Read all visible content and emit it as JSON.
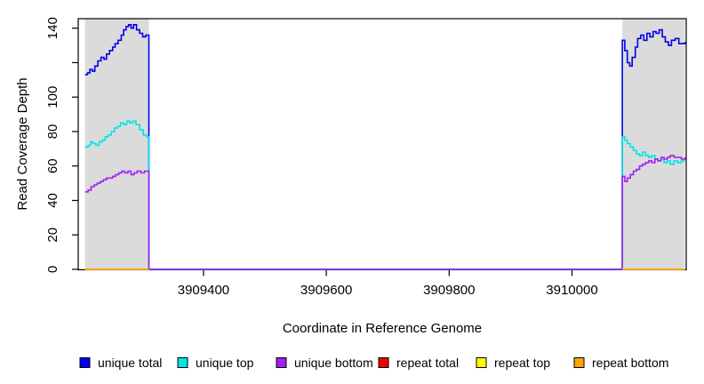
{
  "figure": {
    "background": "#ffffff",
    "plot_background": "#ffffff",
    "box_color": "#000000",
    "region_color": "#dbdbdb"
  },
  "chart_data": {
    "type": "line",
    "title": "",
    "xlabel": "Coordinate in Reference Genome",
    "ylabel": "Read Coverage Depth",
    "xlim": [
      3909196,
      3910186
    ],
    "ylim": [
      0,
      145.5
    ],
    "grid": false,
    "legend_position": "bottom",
    "interpolation": "step",
    "xticks": [
      {
        "value": 3909400,
        "label": "3909400"
      },
      {
        "value": 3909600,
        "label": "3909600"
      },
      {
        "value": 3909800,
        "label": "3909800"
      },
      {
        "value": 3910000,
        "label": "3910000"
      }
    ],
    "yticks": [
      {
        "value": 0,
        "label": "0"
      },
      {
        "value": 20,
        "label": "20"
      },
      {
        "value": 40,
        "label": "40"
      },
      {
        "value": 60,
        "label": "60"
      },
      {
        "value": 80,
        "label": "80"
      },
      {
        "value": 100,
        "label": "100"
      },
      {
        "value": 120,
        "label": ""
      },
      {
        "value": 140,
        "label": "140"
      }
    ],
    "highlight_regions": [
      {
        "name": "left-shaded-region",
        "x1": 3909207,
        "x2": 3909311
      },
      {
        "name": "right-shaded-region",
        "x1": 3910082,
        "x2": 3910184
      }
    ],
    "series": [
      {
        "name": "unique total",
        "color": "#0000EE",
        "points": [
          [
            3909207,
            113
          ],
          [
            3909211,
            114
          ],
          [
            3909215,
            116
          ],
          [
            3909219,
            115
          ],
          [
            3909223,
            118
          ],
          [
            3909228,
            121
          ],
          [
            3909233,
            123
          ],
          [
            3909238,
            122
          ],
          [
            3909242,
            125
          ],
          [
            3909247,
            127
          ],
          [
            3909252,
            129
          ],
          [
            3909256,
            131
          ],
          [
            3909261,
            133
          ],
          [
            3909266,
            136
          ],
          [
            3909270,
            139
          ],
          [
            3909274,
            141
          ],
          [
            3909278,
            142
          ],
          [
            3909282,
            140
          ],
          [
            3909286,
            142
          ],
          [
            3909291,
            139
          ],
          [
            3909296,
            137
          ],
          [
            3909301,
            135
          ],
          [
            3909306,
            136
          ],
          [
            3909311,
            134
          ],
          [
            3909311,
            0
          ],
          [
            3910082,
            0
          ],
          [
            3910082,
            133
          ],
          [
            3910086,
            127
          ],
          [
            3910090,
            120
          ],
          [
            3910094,
            118
          ],
          [
            3910098,
            123
          ],
          [
            3910103,
            129
          ],
          [
            3910107,
            134
          ],
          [
            3910112,
            136
          ],
          [
            3910117,
            133
          ],
          [
            3910122,
            137
          ],
          [
            3910127,
            135
          ],
          [
            3910132,
            138
          ],
          [
            3910137,
            137
          ],
          [
            3910142,
            139
          ],
          [
            3910147,
            135
          ],
          [
            3910152,
            132
          ],
          [
            3910157,
            130
          ],
          [
            3910162,
            133
          ],
          [
            3910168,
            134
          ],
          [
            3910174,
            131
          ],
          [
            3910184,
            132
          ]
        ]
      },
      {
        "name": "unique top",
        "color": "#00E5E5",
        "points": [
          [
            3909207,
            71
          ],
          [
            3909212,
            72
          ],
          [
            3909216,
            74
          ],
          [
            3909220,
            73
          ],
          [
            3909225,
            72
          ],
          [
            3909230,
            74
          ],
          [
            3909235,
            75
          ],
          [
            3909240,
            77
          ],
          [
            3909245,
            78
          ],
          [
            3909250,
            80
          ],
          [
            3909255,
            82
          ],
          [
            3909260,
            83
          ],
          [
            3909265,
            85
          ],
          [
            3909270,
            84
          ],
          [
            3909275,
            86
          ],
          [
            3909280,
            85
          ],
          [
            3909285,
            86
          ],
          [
            3909290,
            84
          ],
          [
            3909296,
            81
          ],
          [
            3909302,
            78
          ],
          [
            3909307,
            77
          ],
          [
            3909311,
            77
          ],
          [
            3909311,
            0
          ],
          [
            3910082,
            0
          ],
          [
            3910082,
            77
          ],
          [
            3910086,
            75
          ],
          [
            3910090,
            73
          ],
          [
            3910095,
            71
          ],
          [
            3910100,
            69
          ],
          [
            3910105,
            67
          ],
          [
            3910110,
            66
          ],
          [
            3910115,
            68
          ],
          [
            3910120,
            66
          ],
          [
            3910125,
            65
          ],
          [
            3910130,
            66
          ],
          [
            3910135,
            64
          ],
          [
            3910140,
            63
          ],
          [
            3910145,
            64
          ],
          [
            3910150,
            62
          ],
          [
            3910155,
            63
          ],
          [
            3910160,
            61
          ],
          [
            3910166,
            63
          ],
          [
            3910172,
            62
          ],
          [
            3910178,
            63
          ],
          [
            3910184,
            63
          ]
        ]
      },
      {
        "name": "unique bottom",
        "color": "#A020F0",
        "points": [
          [
            3909207,
            45
          ],
          [
            3909212,
            46
          ],
          [
            3909217,
            48
          ],
          [
            3909222,
            49
          ],
          [
            3909227,
            50
          ],
          [
            3909232,
            51
          ],
          [
            3909237,
            52
          ],
          [
            3909242,
            53
          ],
          [
            3909247,
            53
          ],
          [
            3909252,
            54
          ],
          [
            3909257,
            55
          ],
          [
            3909262,
            56
          ],
          [
            3909267,
            57
          ],
          [
            3909272,
            56
          ],
          [
            3909277,
            57
          ],
          [
            3909282,
            55
          ],
          [
            3909287,
            56
          ],
          [
            3909292,
            57
          ],
          [
            3909298,
            56
          ],
          [
            3909304,
            57
          ],
          [
            3909311,
            57
          ],
          [
            3909311,
            0
          ],
          [
            3910082,
            0
          ],
          [
            3910082,
            54
          ],
          [
            3910086,
            51
          ],
          [
            3910090,
            53
          ],
          [
            3910095,
            55
          ],
          [
            3910100,
            57
          ],
          [
            3910105,
            58
          ],
          [
            3910110,
            60
          ],
          [
            3910115,
            61
          ],
          [
            3910120,
            62
          ],
          [
            3910125,
            63
          ],
          [
            3910130,
            62
          ],
          [
            3910135,
            64
          ],
          [
            3910140,
            63
          ],
          [
            3910145,
            65
          ],
          [
            3910150,
            64
          ],
          [
            3910155,
            65
          ],
          [
            3910160,
            66
          ],
          [
            3910166,
            65
          ],
          [
            3910172,
            65
          ],
          [
            3910178,
            64
          ],
          [
            3910184,
            65
          ]
        ]
      },
      {
        "name": "repeat total",
        "color": "#EE0000",
        "value": 0,
        "segments": [
          [
            3909207,
            3909311
          ],
          [
            3910082,
            3910184
          ]
        ]
      },
      {
        "name": "repeat top",
        "color": "#FFFF00",
        "value": 0,
        "segments": [
          [
            3909207,
            3909311
          ],
          [
            3910082,
            3910184
          ]
        ]
      },
      {
        "name": "repeat bottom",
        "color": "#FFA500",
        "value": 0,
        "segments": [
          [
            3909207,
            3909311
          ],
          [
            3910082,
            3910184
          ]
        ]
      }
    ]
  },
  "legend": {
    "items": [
      {
        "label": "unique total",
        "color": "#0000EE"
      },
      {
        "label": "unique top",
        "color": "#00E5E5"
      },
      {
        "label": "unique bottom",
        "color": "#A020F0"
      },
      {
        "label": "repeat total",
        "color": "#EE0000"
      },
      {
        "label": "repeat top",
        "color": "#FFFF00"
      },
      {
        "label": "repeat bottom",
        "color": "#FFA500"
      }
    ]
  }
}
